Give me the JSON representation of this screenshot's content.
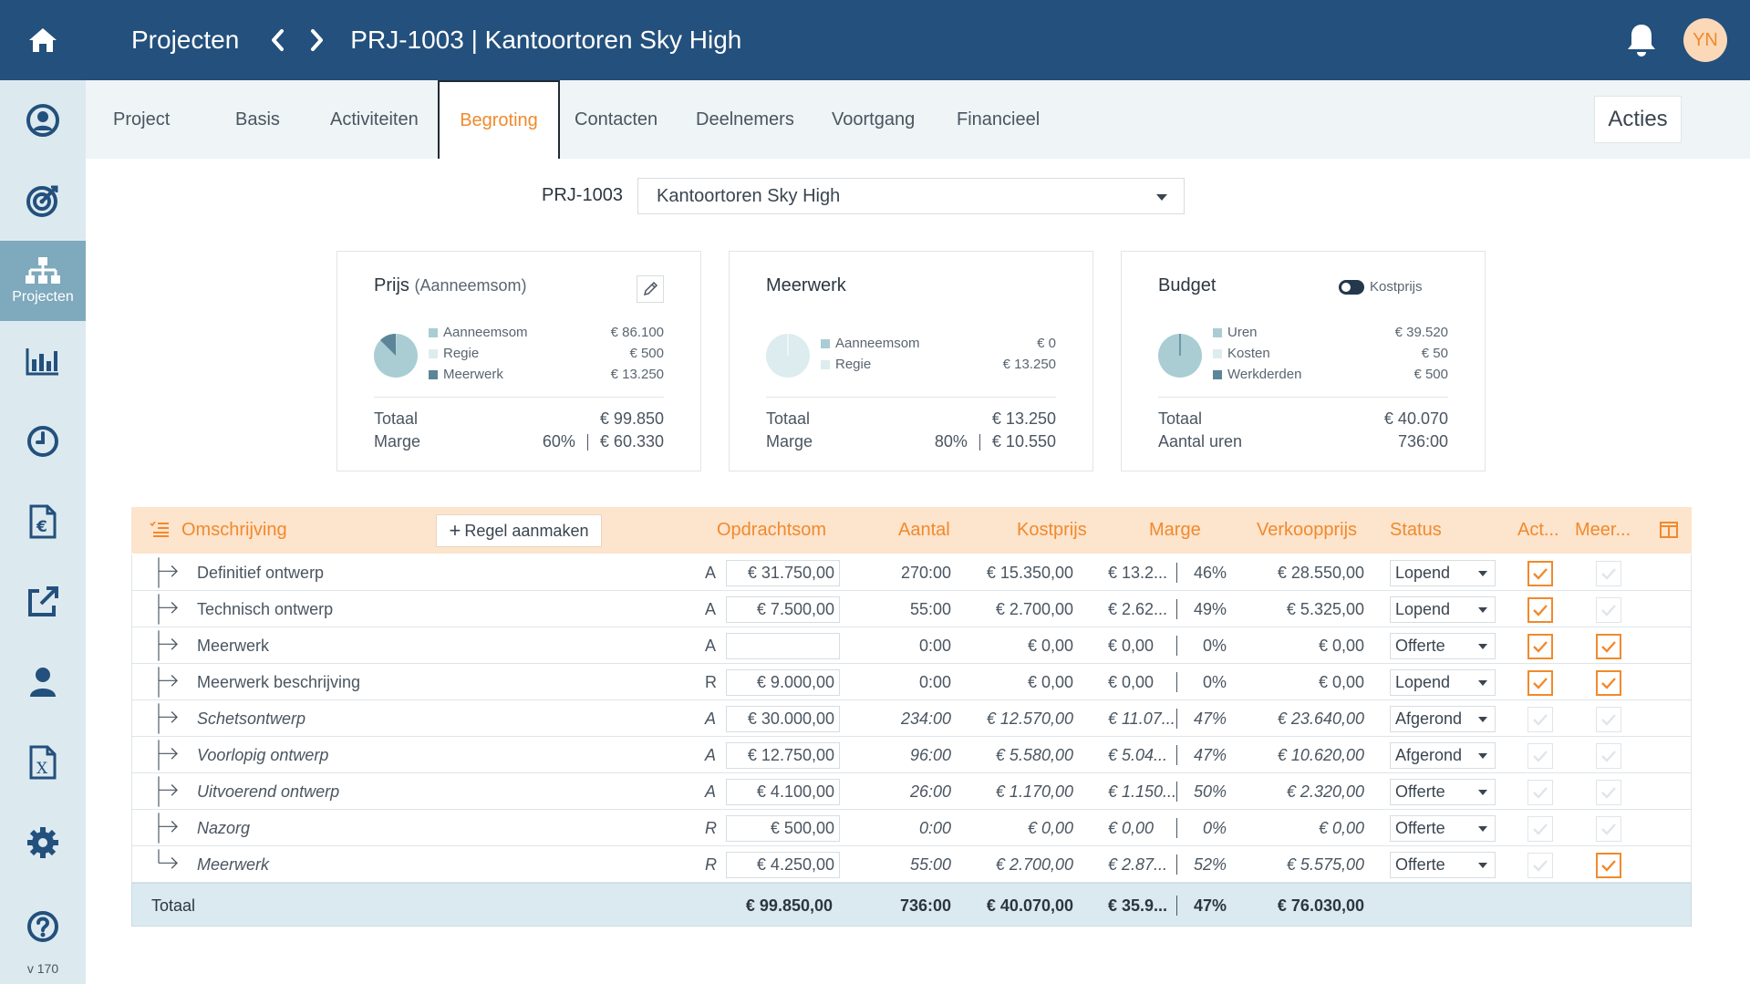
{
  "header": {
    "root": "Projecten",
    "title": "PRJ-1003 | Kantoortoren Sky High",
    "avatar": "YN"
  },
  "sidebar": {
    "items": [
      {
        "icon": "user-circle-icon",
        "label": ""
      },
      {
        "icon": "target-icon",
        "label": ""
      },
      {
        "icon": "sitemap-icon",
        "label": "Projecten",
        "active": true
      },
      {
        "icon": "bar-chart-icon",
        "label": ""
      },
      {
        "icon": "clock-icon",
        "label": ""
      },
      {
        "icon": "euro-document-icon",
        "label": ""
      },
      {
        "icon": "external-link-icon",
        "label": ""
      },
      {
        "icon": "person-icon",
        "label": ""
      },
      {
        "icon": "excel-file-icon",
        "label": ""
      },
      {
        "icon": "gear-icon",
        "label": ""
      },
      {
        "icon": "help-icon",
        "label": ""
      }
    ],
    "version": "v 170"
  },
  "tabs": [
    "Project",
    "Basis",
    "Activiteiten",
    "Begroting",
    "Contacten",
    "Deelnemers",
    "Voortgang",
    "Financieel"
  ],
  "active_tab": "Begroting",
  "acties_label": "Acties",
  "project": {
    "code": "PRJ-1003",
    "name": "Kantoortoren Sky High"
  },
  "cards": {
    "prijs": {
      "title": "Prijs",
      "subtitle": "(Aanneemsom)",
      "legend": [
        {
          "label": "Aanneemsom",
          "value": "€ 86.100",
          "color": "#a9cdd3"
        },
        {
          "label": "Regie",
          "value": "€ 500",
          "color": "#dcecef"
        },
        {
          "label": "Meerwerk",
          "value": "€ 13.250",
          "color": "#5d8598"
        }
      ],
      "totaal_label": "Totaal",
      "totaal_value": "€ 99.850",
      "marge_label": "Marge",
      "marge_pct": "60%",
      "marge_value": "€ 60.330"
    },
    "meerwerk": {
      "title": "Meerwerk",
      "legend": [
        {
          "label": "Aanneemsom",
          "value": "€ 0",
          "color": "#a9cdd3"
        },
        {
          "label": "Regie",
          "value": "€ 13.250",
          "color": "#dcecef"
        }
      ],
      "totaal_label": "Totaal",
      "totaal_value": "€ 13.250",
      "marge_label": "Marge",
      "marge_pct": "80%",
      "marge_value": "€ 10.550"
    },
    "budget": {
      "title": "Budget",
      "toggle_label": "Kostprijs",
      "legend": [
        {
          "label": "Uren",
          "value": "€ 39.520",
          "color": "#a9cdd3"
        },
        {
          "label": "Kosten",
          "value": "€ 50",
          "color": "#dcecef"
        },
        {
          "label": "Werkderden",
          "value": "€ 500",
          "color": "#5d8598"
        }
      ],
      "totaal_label": "Totaal",
      "totaal_value": "€ 40.070",
      "uren_label": "Aantal uren",
      "uren_value": "736:00"
    }
  },
  "table": {
    "add_row_label": "Regel aanmaken",
    "columns": {
      "omschrijving": "Omschrijving",
      "opdrachtsom": "Opdrachtsom",
      "aantal": "Aantal",
      "kostprijs": "Kostprijs",
      "marge": "Marge",
      "verkoopprijs": "Verkoopprijs",
      "status": "Status",
      "act": "Act...",
      "meer": "Meer..."
    },
    "rows": [
      {
        "desc": "Definitief ontwerp",
        "type": "A",
        "opdracht": "€ 31.750,00",
        "aantal": "270:00",
        "kostprijs": "€ 15.350,00",
        "marge_amt": "€ 13.2...",
        "marge_pct": "46%",
        "verkoop": "€ 28.550,00",
        "status": "Lopend",
        "act": true,
        "meer": false,
        "italic": false
      },
      {
        "desc": "Technisch ontwerp",
        "type": "A",
        "opdracht": "€ 7.500,00",
        "aantal": "55:00",
        "kostprijs": "€ 2.700,00",
        "marge_amt": "€ 2.62...",
        "marge_pct": "49%",
        "verkoop": "€ 5.325,00",
        "status": "Lopend",
        "act": true,
        "meer": false,
        "italic": false
      },
      {
        "desc": "Meerwerk",
        "type": "A",
        "opdracht": "",
        "aantal": "0:00",
        "kostprijs": "€ 0,00",
        "marge_amt": "€ 0,00",
        "marge_pct": "0%",
        "verkoop": "€ 0,00",
        "status": "Offerte",
        "act": true,
        "meer": true,
        "italic": false
      },
      {
        "desc": "Meerwerk beschrijving",
        "type": "R",
        "opdracht": "€ 9.000,00",
        "aantal": "0:00",
        "kostprijs": "€ 0,00",
        "marge_amt": "€ 0,00",
        "marge_pct": "0%",
        "verkoop": "€ 0,00",
        "status": "Lopend",
        "act": true,
        "meer": true,
        "italic": false
      },
      {
        "desc": "Schetsontwerp",
        "type": "A",
        "opdracht": "€ 30.000,00",
        "aantal": "234:00",
        "kostprijs": "€ 12.570,00",
        "marge_amt": "€ 11.07...",
        "marge_pct": "47%",
        "verkoop": "€ 23.640,00",
        "status": "Afgerond",
        "act": false,
        "meer": false,
        "italic": true
      },
      {
        "desc": "Voorlopig ontwerp",
        "type": "A",
        "opdracht": "€ 12.750,00",
        "aantal": "96:00",
        "kostprijs": "€ 5.580,00",
        "marge_amt": "€ 5.04...",
        "marge_pct": "47%",
        "verkoop": "€ 10.620,00",
        "status": "Afgerond",
        "act": false,
        "meer": false,
        "italic": true
      },
      {
        "desc": "Uitvoerend ontwerp",
        "type": "A",
        "opdracht": "€ 4.100,00",
        "aantal": "26:00",
        "kostprijs": "€ 1.170,00",
        "marge_amt": "€ 1.150...",
        "marge_pct": "50%",
        "verkoop": "€ 2.320,00",
        "status": "Offerte",
        "act": false,
        "meer": false,
        "italic": true
      },
      {
        "desc": "Nazorg",
        "type": "R",
        "opdracht": "€ 500,00",
        "aantal": "0:00",
        "kostprijs": "€ 0,00",
        "marge_amt": "€ 0,00",
        "marge_pct": "0%",
        "verkoop": "€ 0,00",
        "status": "Offerte",
        "act": false,
        "meer": false,
        "italic": true
      },
      {
        "desc": "Meerwerk",
        "type": "R",
        "opdracht": "€ 4.250,00",
        "aantal": "55:00",
        "kostprijs": "€ 2.700,00",
        "marge_amt": "€ 2.87...",
        "marge_pct": "52%",
        "verkoop": "€ 5.575,00",
        "status": "Offerte",
        "act": false,
        "meer": true,
        "italic": true
      }
    ],
    "totals": {
      "label": "Totaal",
      "opdracht": "€ 99.850,00",
      "aantal": "736:00",
      "kostprijs": "€ 40.070,00",
      "marge_amt": "€ 35.9...",
      "marge_pct": "47%",
      "verkoop": "€ 76.030,00"
    }
  },
  "colors": {
    "topbar": "#23507c",
    "accent": "#f08a2c",
    "sidebar": "#dceaf0",
    "sidebar_active": "#7fa9bd",
    "table_header": "#fde4cd",
    "table_footer": "#dbeaf0"
  }
}
